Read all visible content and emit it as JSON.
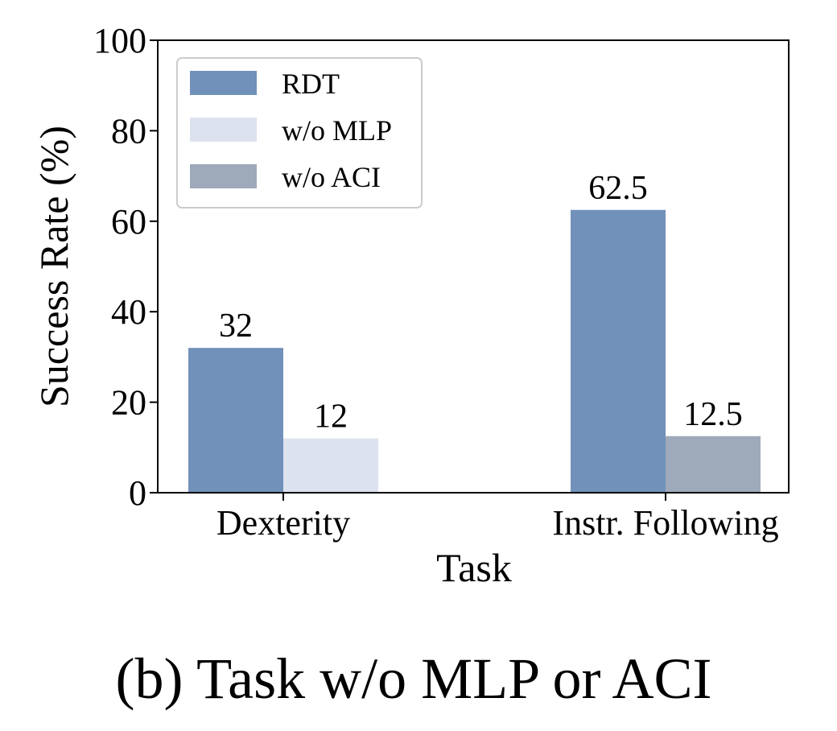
{
  "chart_data": {
    "type": "bar",
    "xlabel": "Task",
    "ylabel": "Success Rate (%)",
    "ylim": [
      0,
      100
    ],
    "yticks": [
      0,
      20,
      40,
      60,
      80,
      100
    ],
    "categories": [
      "Dexterity",
      "Instr. Following"
    ],
    "series": [
      {
        "name": "RDT",
        "color": "#7191ba",
        "values": [
          32,
          62.5
        ]
      },
      {
        "name": "w/o MLP",
        "color": "#dde3ee",
        "values": [
          12,
          null
        ]
      },
      {
        "name": "w/o ACI",
        "color": "#9ea9b9",
        "values": [
          null,
          12.5
        ]
      }
    ],
    "data_labels": [
      [
        "32",
        "62.5"
      ],
      [
        "12",
        null
      ],
      [
        null,
        "12.5"
      ]
    ],
    "grid": false,
    "legend_position": "top-left"
  },
  "caption": "(b) Task w/o MLP or ACI"
}
